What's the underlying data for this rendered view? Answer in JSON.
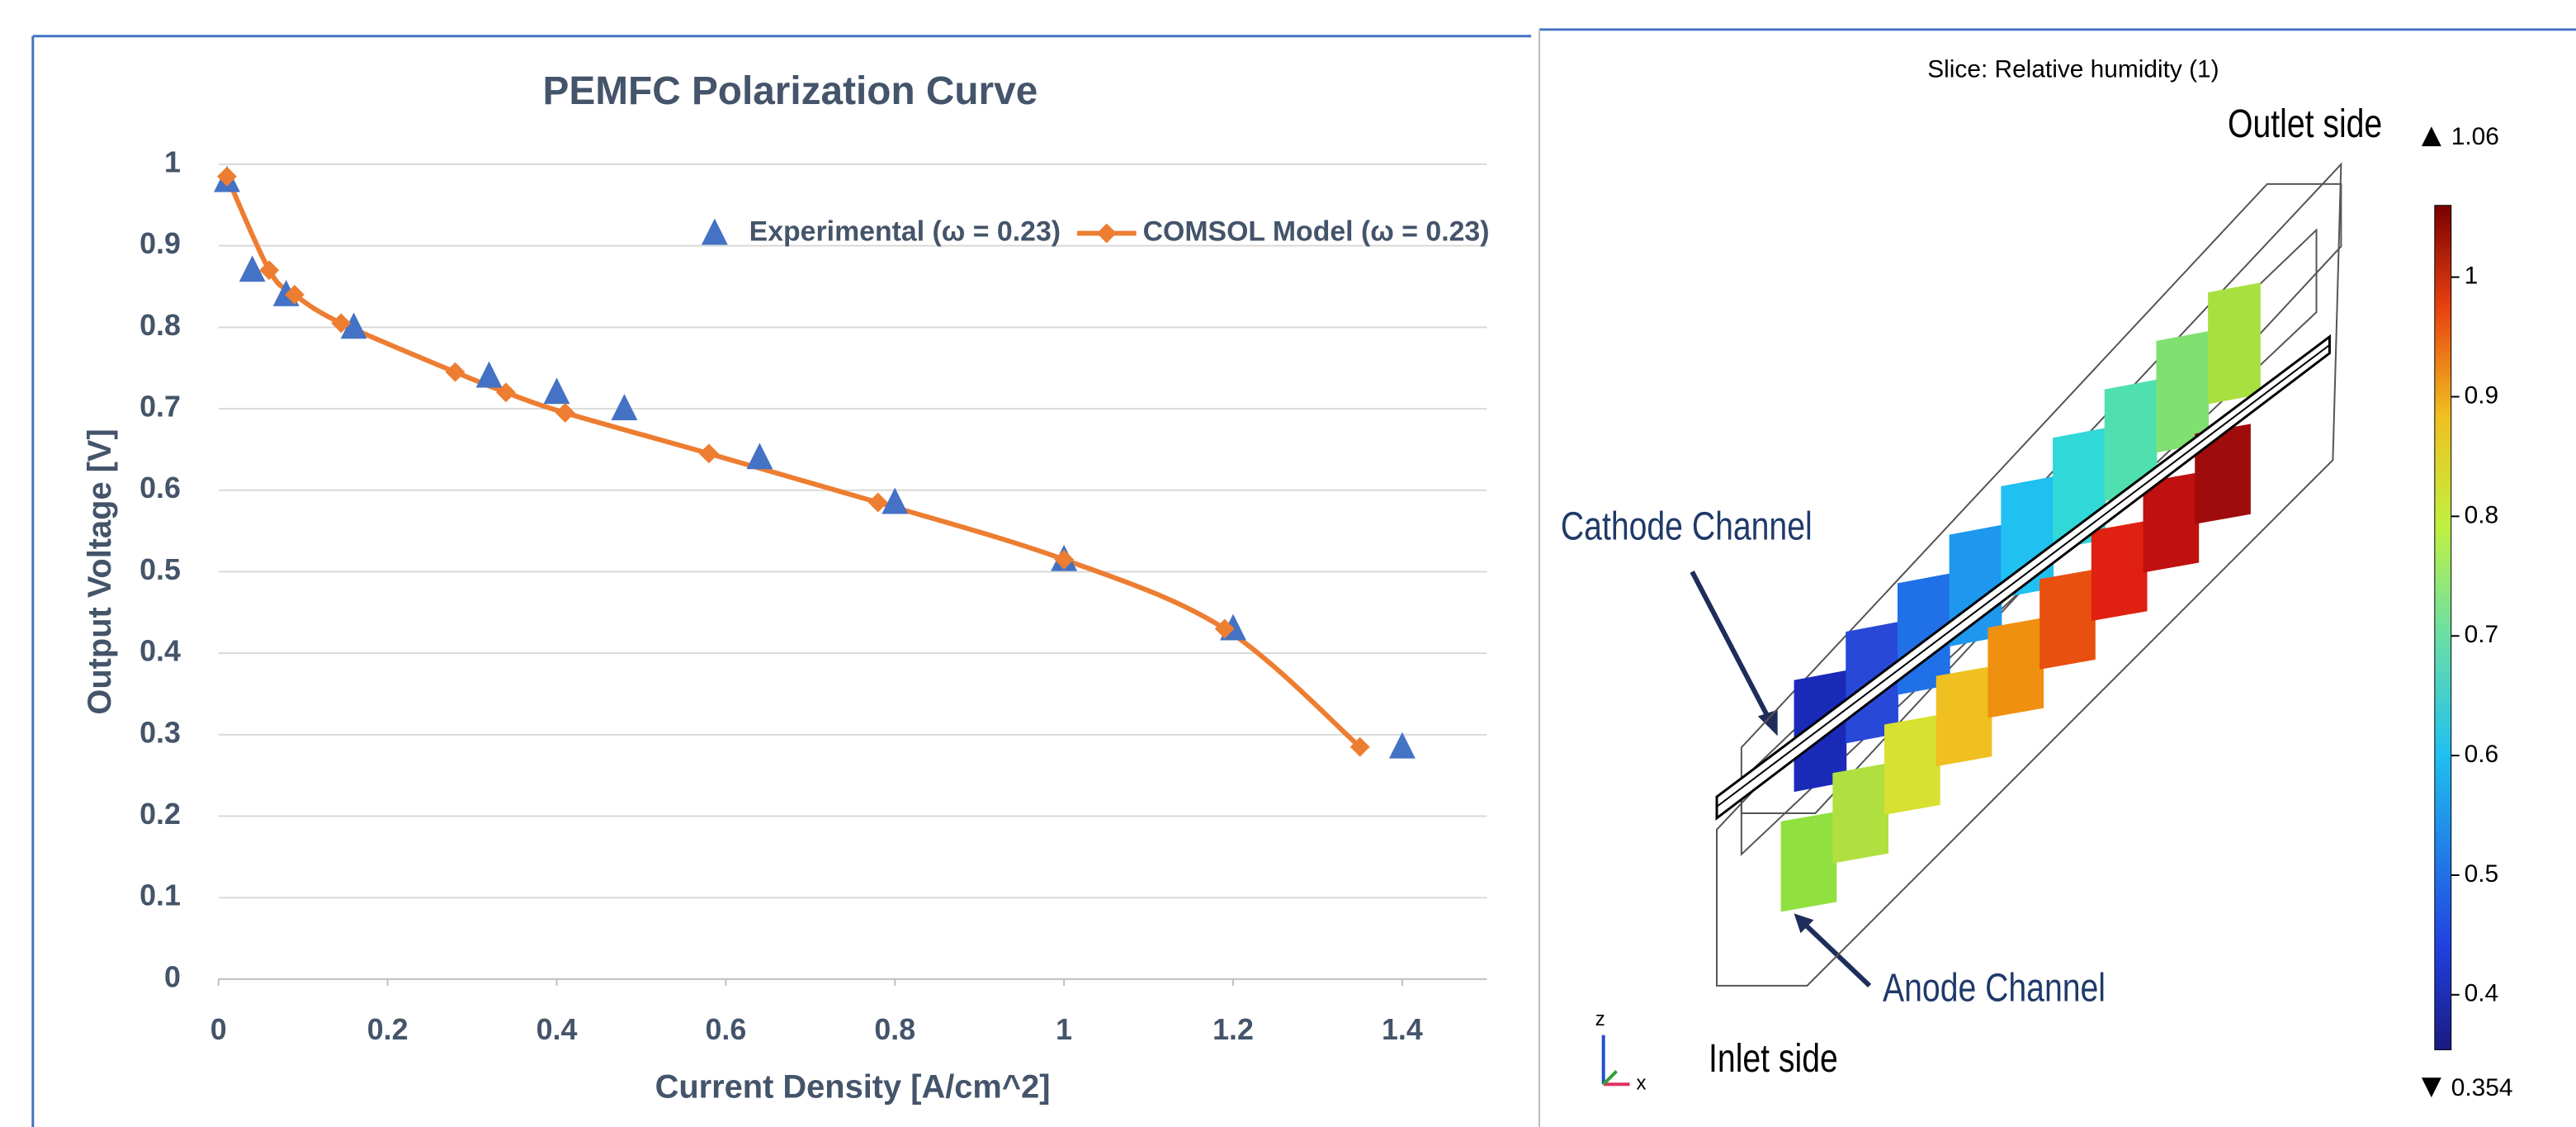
{
  "chart_data": [
    {
      "type": "line",
      "title": "PEMFC Polarization Curve",
      "x_label": "Current Density [A/cm^2]",
      "y_label": "Output Voltage [V]",
      "xlim": [
        0,
        1.5
      ],
      "xticks": [
        0,
        0.2,
        0.4,
        0.6,
        0.8,
        1,
        1.2,
        1.4
      ],
      "ylim": [
        0,
        1
      ],
      "yticks": [
        0,
        0.1,
        0.2,
        0.3,
        0.4,
        0.5,
        0.6,
        0.7,
        0.8,
        0.9,
        1
      ],
      "grid": true,
      "legend": "top-right",
      "series": [
        {
          "name": "Experimental (ω = 0.23)",
          "color": "#4472c4",
          "marker": "triangle",
          "line": false,
          "x": [
            0.01,
            0.04,
            0.08,
            0.16,
            0.32,
            0.4,
            0.48,
            0.64,
            0.8,
            1.0,
            1.2,
            1.4
          ],
          "values": [
            0.98,
            0.87,
            0.84,
            0.8,
            0.74,
            0.72,
            0.7,
            0.64,
            0.585,
            0.515,
            0.43,
            0.285
          ]
        },
        {
          "name": "COMSOL Model (ω = 0.23)",
          "color": "#ed7d31",
          "marker": "diamond",
          "line": true,
          "x": [
            0.01,
            0.06,
            0.09,
            0.145,
            0.28,
            0.34,
            0.41,
            0.58,
            0.78,
            1.0,
            1.19,
            1.35
          ],
          "values": [
            0.985,
            0.87,
            0.84,
            0.805,
            0.745,
            0.72,
            0.695,
            0.645,
            0.585,
            0.515,
            0.43,
            0.285
          ]
        }
      ]
    },
    {
      "type": "colorbar",
      "title": "Slice: Relative humidity (1)",
      "min": 0.354,
      "max": 1.06,
      "ylim": [
        0.354,
        1.06
      ],
      "yticks": [
        0.4,
        0.5,
        0.6,
        0.7,
        0.8,
        0.9,
        1
      ],
      "annotations": [
        "Outlet side",
        "Cathode Channel",
        "Anode Channel",
        "Inlet side",
        "z",
        "x"
      ]
    }
  ]
}
